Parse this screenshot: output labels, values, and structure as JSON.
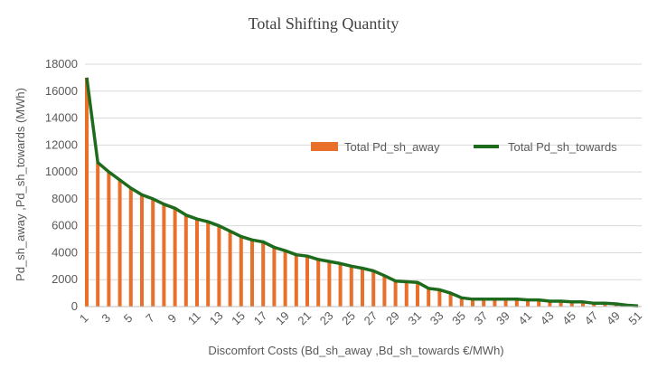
{
  "chart_data": {
    "type": "bar",
    "title": "Total Shifting Quantity",
    "xlabel": "Discomfort Costs (Bd_sh_away ,Bd_sh_towards €/MWh)",
    "ylabel": "Pd_sh_away ,Pd_sh_towards (MWh)",
    "ylim": [
      0,
      18000
    ],
    "yticks": [
      "0",
      "2000",
      "4000",
      "6000",
      "8000",
      "10000",
      "12000",
      "14000",
      "16000",
      "18000"
    ],
    "x": [
      1,
      2,
      3,
      4,
      5,
      6,
      7,
      8,
      9,
      10,
      11,
      12,
      13,
      14,
      15,
      16,
      17,
      18,
      19,
      20,
      21,
      22,
      23,
      24,
      25,
      26,
      27,
      28,
      29,
      30,
      31,
      32,
      33,
      34,
      35,
      36,
      37,
      38,
      39,
      40,
      41,
      42,
      43,
      44,
      45,
      46,
      47,
      48,
      49,
      50,
      51
    ],
    "xtick_labels": [
      "1",
      "3",
      "5",
      "7",
      "9",
      "11",
      "13",
      "15",
      "17",
      "19",
      "21",
      "23",
      "25",
      "27",
      "29",
      "31",
      "33",
      "35",
      "37",
      "39",
      "41",
      "43",
      "45",
      "47",
      "49",
      "51"
    ],
    "grid": true,
    "legend_position": "right",
    "series": [
      {
        "name": "Total Pd_sh_away",
        "type": "bar",
        "color": "#e8702a",
        "values": [
          17000,
          10700,
          10000,
          9400,
          8800,
          8300,
          8000,
          7600,
          7300,
          6800,
          6500,
          6300,
          6000,
          5600,
          5200,
          4950,
          4800,
          4400,
          4150,
          3850,
          3750,
          3500,
          3350,
          3200,
          3000,
          2850,
          2650,
          2300,
          1900,
          1850,
          1800,
          1350,
          1250,
          1000,
          650,
          550,
          550,
          550,
          550,
          550,
          500,
          500,
          400,
          400,
          350,
          350,
          250,
          250,
          200,
          100,
          50
        ]
      },
      {
        "name": "Total Pd_sh_towards",
        "type": "line",
        "color": "#1e6b1e",
        "values": [
          17000,
          10700,
          10000,
          9400,
          8800,
          8300,
          8000,
          7600,
          7300,
          6800,
          6500,
          6300,
          6000,
          5600,
          5200,
          4950,
          4800,
          4400,
          4150,
          3850,
          3750,
          3500,
          3350,
          3200,
          3000,
          2850,
          2650,
          2300,
          1900,
          1850,
          1800,
          1350,
          1250,
          1000,
          650,
          550,
          550,
          550,
          550,
          550,
          500,
          500,
          400,
          400,
          350,
          350,
          250,
          250,
          200,
          100,
          50
        ]
      }
    ]
  }
}
